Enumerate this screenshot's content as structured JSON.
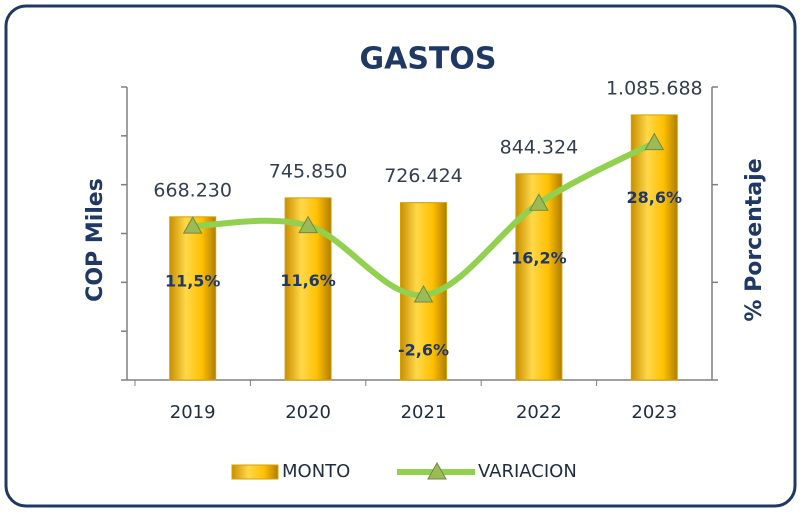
{
  "chart_data": {
    "type": "bar_line",
    "title": "GASTOS",
    "y_label": "COP Miles",
    "y2_label": "% Porcentaje",
    "categories": [
      "2019",
      "2020",
      "2021",
      "2022",
      "2023"
    ],
    "series": [
      {
        "name": "MONTO",
        "type": "bar",
        "color": "#ffc000",
        "values": [
          668230,
          745850,
          726424,
          844324,
          1085688
        ],
        "value_labels": [
          "668.230",
          "745.850",
          "726.424",
          "844.324",
          "1.085.688"
        ]
      },
      {
        "name": "VARIACION",
        "type": "line",
        "axis": "y2",
        "color": "#92d050",
        "values": [
          11.5,
          11.6,
          -2.6,
          16.2,
          28.6
        ],
        "value_labels": [
          "11,5%",
          "11,6%",
          "-2,6%",
          "16,2%",
          "28,6%"
        ]
      }
    ],
    "ylim": [
      0,
      1200000
    ],
    "yticks": [
      0,
      200000,
      400000,
      600000,
      800000,
      1000000,
      1200000
    ],
    "y2lim": [
      -20,
      40
    ],
    "y2ticks": [
      -20,
      0,
      20,
      40
    ],
    "legend": "bottom"
  }
}
